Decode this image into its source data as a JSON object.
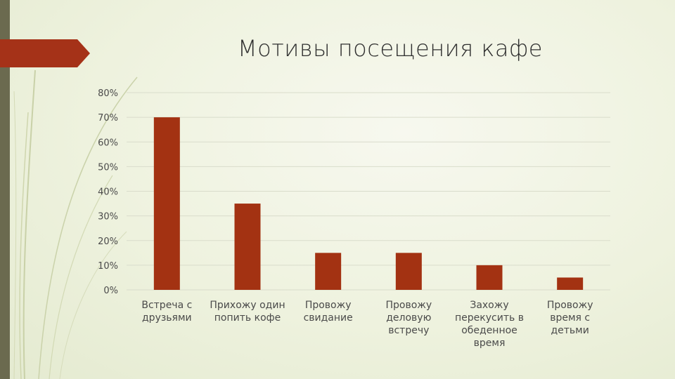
{
  "slide": {
    "title": "Мотивы посещения кафе",
    "accent_color": "#a53218",
    "sidebar_color": "#6b6a4f"
  },
  "chart_data": {
    "type": "bar",
    "title": "",
    "xlabel": "",
    "ylabel": "",
    "categories": [
      "Встреча с друзьями",
      "Прихожу один попить кофе",
      "Провожу свидание",
      "Провожу деловую встречу",
      "Захожу перекусить в обеденное время",
      "Провожу время с детьми"
    ],
    "category_lines": [
      [
        "Встреча с",
        "друзьями"
      ],
      [
        "Прихожу один",
        "попить кофе"
      ],
      [
        "Провожу",
        "свидание"
      ],
      [
        "Провожу",
        "деловую",
        "встречу"
      ],
      [
        "Захожу",
        "перекусить в",
        "обеденное",
        "время"
      ],
      [
        "Провожу",
        "время с",
        "детьми"
      ]
    ],
    "values": [
      70,
      35,
      15,
      15,
      10,
      5
    ],
    "ylim": [
      0,
      80
    ],
    "yticks": [
      0,
      10,
      20,
      30,
      40,
      50,
      60,
      70,
      80
    ],
    "ytick_labels": [
      "0%",
      "10%",
      "20%",
      "30%",
      "40%",
      "50%",
      "60%",
      "70%",
      "80%"
    ],
    "bar_color": "#a33212",
    "grid": true,
    "legend": "none"
  }
}
